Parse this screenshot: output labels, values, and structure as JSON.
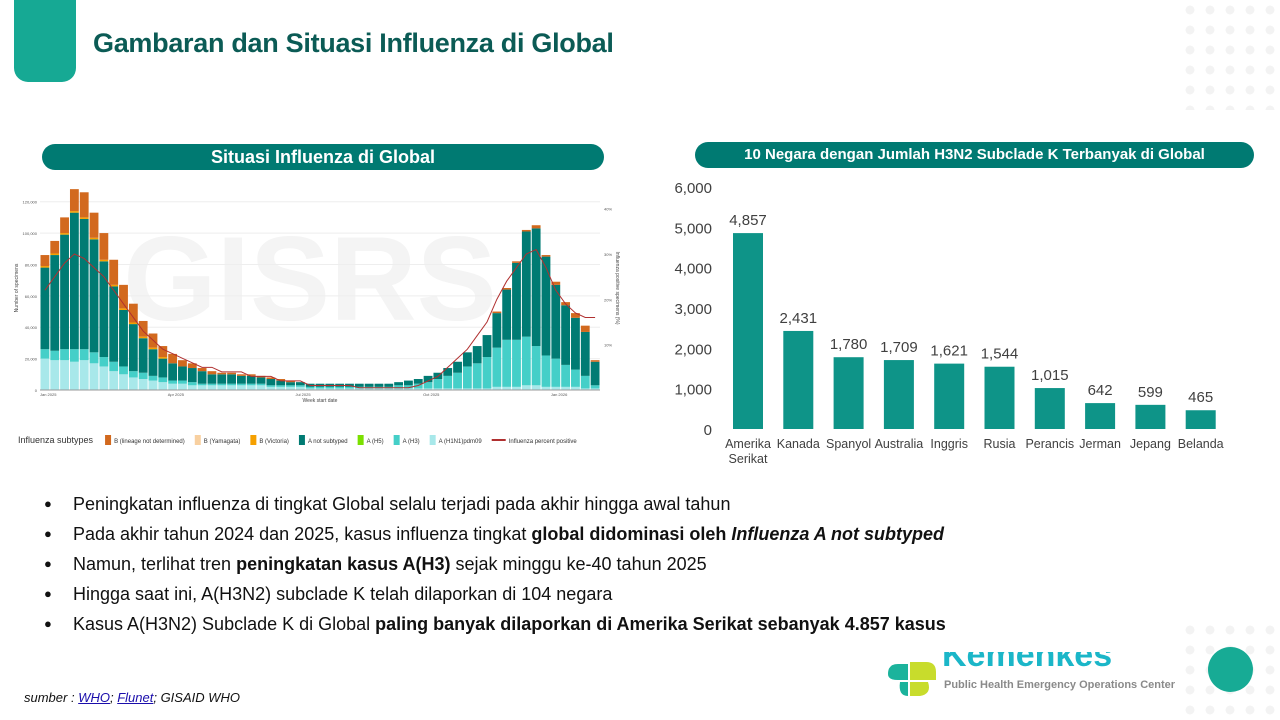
{
  "header": {
    "title": "Gambaran dan Situasi Influenza di Global"
  },
  "left_banner": "Situasi Influenza di Global",
  "right_banner": "10 Negara dengan Jumlah H3N2 Subclade K Terbanyak di Global",
  "bullets": [
    {
      "parts": [
        {
          "t": "Peningkatan influenza di tingkat Global selalu terjadi pada akhir hingga awal tahun",
          "b": false,
          "i": false
        }
      ]
    },
    {
      "parts": [
        {
          "t": "Pada akhir tahun 2024 dan 2025, kasus influenza tingkat ",
          "b": false,
          "i": false
        },
        {
          "t": "global didominasi oleh ",
          "b": true,
          "i": false
        },
        {
          "t": "Influenza A not subtyped",
          "b": true,
          "i": true
        }
      ]
    },
    {
      "parts": [
        {
          "t": "Namun, terlihat tren ",
          "b": false,
          "i": false
        },
        {
          "t": "peningkatan kasus A(H3)",
          "b": true,
          "i": false
        },
        {
          "t": " sejak minggu ke-40 tahun 2025",
          "b": false,
          "i": false
        }
      ]
    },
    {
      "parts": [
        {
          "t": "Hingga saat ini, A(H3N2) subclade K telah dilaporkan di 104 negara",
          "b": false,
          "i": false
        }
      ]
    },
    {
      "parts": [
        {
          "t": "Kasus A(H3N2) Subclade K di Global ",
          "b": false,
          "i": false
        },
        {
          "t": "paling banyak dilaporkan di Amerika Serikat sebanyak 4.857 kasus",
          "b": true,
          "i": false
        }
      ]
    }
  ],
  "source": {
    "prefix": "sumber : ",
    "link1": "WHO",
    "sep1": "; ",
    "link2": "Flunet",
    "rest": "; GISAID WHO"
  },
  "logo": {
    "name": "Kemenkes",
    "subtitle": "Public Health Emergency Operations Center"
  },
  "colors": {
    "teal": "#007a72",
    "title": "#0b5b55",
    "bar": "#0e9488"
  },
  "chart_data": [
    {
      "type": "bar",
      "stacked": true,
      "watermark": "GISRS",
      "xlabel": "Week start date",
      "ylabel": "Number of specimens",
      "y2label": "Influenza positive specimens (%)",
      "ylim": [
        0,
        130000
      ],
      "y2lim": [
        0,
        45
      ],
      "yticks": [
        "0",
        "20,000",
        "40,000",
        "60,000",
        "80,000",
        "100,000",
        "120,000"
      ],
      "y2ticks": [
        "10%",
        "20%",
        "30%",
        "40%"
      ],
      "xticks": [
        "Jan 2025",
        "Apr 2025",
        "Jul 2025",
        "Oct 2025",
        "Jan 2026"
      ],
      "xtick_index": [
        0,
        13,
        26,
        39,
        52
      ],
      "legend_title": "Influenza subtypes",
      "legend": [
        {
          "name": "B (lineage not determined)",
          "color": "#d2691e"
        },
        {
          "name": "B (Yamagata)",
          "color": "#f8d0a0"
        },
        {
          "name": "B (Victoria)",
          "color": "#f5a000"
        },
        {
          "name": "A not subtyped",
          "color": "#007b73"
        },
        {
          "name": "A (H5)",
          "color": "#7be000"
        },
        {
          "name": "A (H3)",
          "color": "#45cfc8"
        },
        {
          "name": "A (H1N1)pdm09",
          "color": "#a8e8ea"
        },
        {
          "name": "Influenza percent positive",
          "color": "#b03030"
        }
      ],
      "series_thousands": {
        "A (H1N1)pdm09": [
          20,
          19,
          19,
          18,
          19,
          17,
          15,
          12,
          10,
          8,
          7,
          6,
          5,
          4,
          4,
          3,
          3,
          3,
          3,
          3,
          3,
          3,
          3,
          2,
          2,
          2,
          2,
          1,
          1,
          1,
          1,
          1,
          1,
          1,
          1,
          1,
          1,
          1,
          1,
          1,
          1,
          1,
          1,
          1,
          1,
          1,
          2,
          2,
          2,
          3,
          3,
          2,
          2,
          2,
          2,
          1,
          1
        ],
        "A (H3)": [
          6,
          6,
          7,
          8,
          7,
          7,
          6,
          6,
          5,
          4,
          4,
          3,
          3,
          2,
          2,
          2,
          1,
          1,
          1,
          1,
          1,
          1,
          1,
          1,
          1,
          1,
          1,
          1,
          1,
          1,
          1,
          1,
          1,
          1,
          1,
          1,
          2,
          2,
          3,
          4,
          6,
          8,
          10,
          14,
          16,
          20,
          25,
          30,
          30,
          31,
          25,
          20,
          18,
          14,
          11,
          8,
          2
        ],
        "A not subtyped": [
          52,
          61,
          73,
          87,
          83,
          72,
          61,
          48,
          36,
          30,
          22,
          17,
          12,
          11,
          9,
          9,
          8,
          6,
          6,
          6,
          5,
          5,
          4,
          4,
          3,
          2,
          2,
          2,
          2,
          2,
          2,
          2,
          2,
          2,
          2,
          2,
          2,
          3,
          3,
          4,
          4,
          5,
          7,
          9,
          11,
          14,
          22,
          32,
          49,
          67,
          75,
          63,
          47,
          38,
          33,
          28,
          15
        ],
        "B (Victoria)": [
          1,
          1,
          1,
          1,
          1,
          1,
          1,
          1,
          1,
          1,
          1,
          1,
          1,
          0,
          0,
          0,
          0,
          0,
          0,
          0,
          0,
          0,
          0,
          0,
          0,
          0,
          0,
          0,
          0,
          0,
          0,
          0,
          0,
          0,
          0,
          0,
          0,
          0,
          0,
          0,
          0,
          0,
          0,
          0,
          0,
          0,
          0,
          0,
          0,
          0,
          0,
          0,
          0,
          0,
          0,
          0,
          0
        ],
        "B (lineage not determined)": [
          7,
          8,
          10,
          14,
          16,
          16,
          17,
          16,
          15,
          12,
          10,
          9,
          7,
          6,
          4,
          3,
          2,
          2,
          1,
          1,
          1,
          1,
          1,
          1,
          1,
          1,
          0,
          0,
          0,
          0,
          0,
          0,
          0,
          0,
          0,
          0,
          0,
          0,
          0,
          0,
          0,
          0,
          0,
          0,
          0,
          0,
          1,
          1,
          1,
          1,
          2,
          1,
          2,
          2,
          3,
          4,
          1
        ]
      },
      "percent_positive": [
        22,
        25,
        28,
        30,
        29,
        27,
        25,
        22,
        19,
        16,
        13,
        11,
        9,
        8,
        7,
        6,
        5,
        5,
        4,
        4,
        4,
        3,
        3,
        3,
        2,
        2,
        2,
        1,
        1,
        1,
        1,
        1,
        0.5,
        0.5,
        0.5,
        0.5,
        0.5,
        0.5,
        1,
        2,
        3,
        5,
        7,
        9,
        12,
        15,
        20,
        24,
        27,
        30,
        31,
        27,
        22,
        19,
        17,
        16,
        16
      ]
    },
    {
      "type": "bar",
      "title": "10 Negara dengan Jumlah H3N2 Subclade K Terbanyak di Global",
      "categories": [
        "Amerika Serikat",
        "Kanada",
        "Spanyol",
        "Australia",
        "Inggris",
        "Rusia",
        "Perancis",
        "Jerman",
        "Jepang",
        "Belanda"
      ],
      "values": [
        4857,
        2431,
        1780,
        1709,
        1621,
        1544,
        1015,
        642,
        599,
        465
      ],
      "labels": [
        "4,857",
        "2,431",
        "1,780",
        "1,709",
        "1,621",
        "1,544",
        "1,015",
        "642",
        "599",
        "465"
      ],
      "yticks": [
        "0",
        "1,000",
        "2,000",
        "3,000",
        "4,000",
        "5,000",
        "6,000"
      ],
      "ylim": [
        0,
        6000
      ],
      "color": "#0e9488"
    }
  ]
}
